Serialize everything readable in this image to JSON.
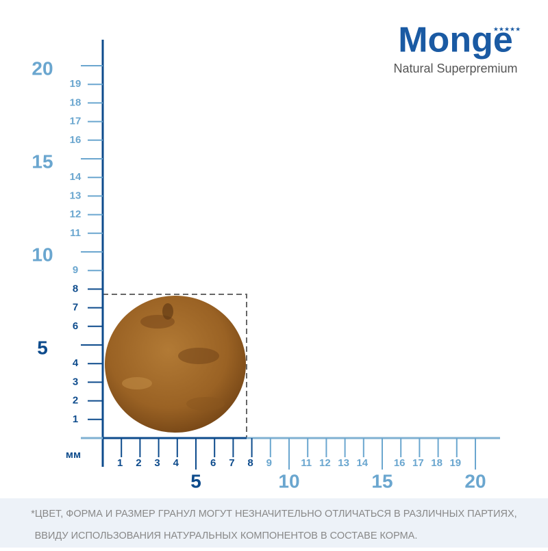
{
  "logo": {
    "brand": "Monge",
    "tagline": "Natural Superpremium"
  },
  "ruler": {
    "unit": "мм",
    "y_minor_dark": [
      1,
      2,
      3,
      4,
      6,
      7,
      8
    ],
    "y_minor_light": [
      9,
      11,
      12,
      13,
      14,
      16,
      17,
      18,
      19
    ],
    "y_major_dark": [
      5
    ],
    "y_major_light": [
      10,
      15,
      20
    ],
    "x_minor_dark": [
      1,
      2,
      3,
      4,
      6,
      7,
      8
    ],
    "x_minor_light": [
      9,
      11,
      12,
      13,
      14,
      16,
      17,
      18,
      19
    ],
    "x_major_dark": [
      5
    ],
    "x_major_light": [
      10,
      15,
      20
    ]
  },
  "footer": {
    "lines": [
      "*ЦВЕТ, ФОРМА И РАЗМЕР ГРАНУЛ МОГУТ НЕЗНАЧИТЕЛЬНО ОТЛИЧАТЬСЯ В РАЗЛИЧНЫХ ПАРТИЯХ,",
      "ВВИДУ ИСПОЛЬЗОВАНИЯ НАТУРАЛЬНЫХ КОМПОНЕНТОВ В СОСТАВЕ КОРМА."
    ]
  }
}
